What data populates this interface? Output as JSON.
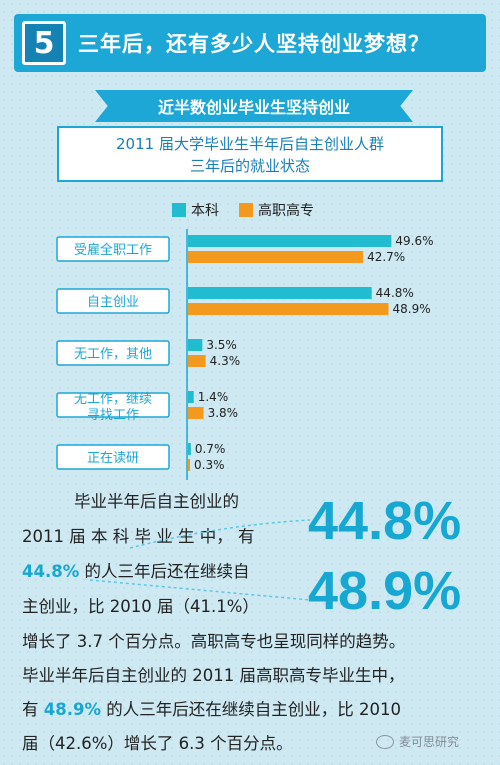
{
  "header": {
    "number": "5",
    "title": "三年后，还有多少人坚持创业梦想？"
  },
  "ribbon": "近半数创业毕业生坚持创业",
  "subtitle": {
    "line1": "2011 届大学毕业生半年后自主创业人群",
    "line2": "三年后的就业状态"
  },
  "colors": {
    "bachelor": "#22bcd0",
    "vocational": "#f39a1e",
    "accent": "#1da7d6"
  },
  "chart_data": {
    "type": "bar",
    "orientation": "horizontal",
    "categories": [
      "受雇全职工作",
      "自主创业",
      "无工作，其他",
      "无工作，继续\n寻找工作",
      "正在读研"
    ],
    "series": [
      {
        "name": "本科",
        "values": [
          49.6,
          44.8,
          3.5,
          1.4,
          0.7
        ],
        "color": "#22bcd0"
      },
      {
        "name": "高职高专",
        "values": [
          42.7,
          48.9,
          4.3,
          3.8,
          0.3
        ],
        "color": "#f39a1e"
      }
    ],
    "value_labels": [
      [
        "49.6%",
        "42.7%"
      ],
      [
        "44.8%",
        "48.9%"
      ],
      [
        "3.5%",
        "4.3%"
      ],
      [
        "1.4%",
        "3.8%"
      ],
      [
        "0.7%",
        "0.3%"
      ]
    ],
    "legend_position": "top",
    "grid": false
  },
  "text": {
    "l1": "毕业半年后自主创业的",
    "l2": "2011 届 本 科 毕 业 生 中， 有",
    "l3_hl": "44.8%",
    "l3": " 的人三年后还在继续自",
    "l4": "主创业，比 2010 届（41.1%）",
    "l5": "增长了 3.7 个百分点。高职高专也呈现同样的趋势。",
    "l6": "毕业半年后自主创业的 2011 届高职高专毕业生中，",
    "l7a": "有 ",
    "l7_hl": "48.9%",
    "l7b": " 的人三年后还在继续自主创业，比 2010",
    "l8": "届（42.6%）增长了 6.3 个百分点。",
    "big1": "44.8%",
    "big2": "48.9%"
  },
  "watermark": "麦可思研究"
}
